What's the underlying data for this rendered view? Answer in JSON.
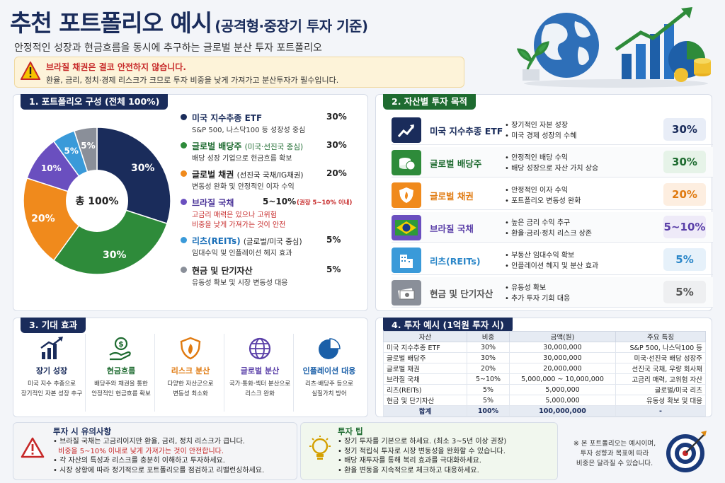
{
  "header": {
    "title": "추천 포트폴리오 예시",
    "title_sub": "(공격형·중장기 투자 기준)",
    "subtitle": "안정적인 성장과 현금흐름을 동시에 추구하는 글로벌 분산 투자 포트폴리오"
  },
  "warning": {
    "line1": "브라질 채권은 결코 안전하지 않습니다.",
    "line2": "환율, 금리, 정치·경제 리스크가 크므로 투자 비중을 낮게 가져가고 분산투자가 필수입니다."
  },
  "section1": {
    "title": "1. 포트폴리오 구성 (전체 100%)",
    "center_label": "총 100%",
    "items": [
      {
        "name": "미국 지수추종 ETF",
        "note": "",
        "pct": "30%",
        "desc": "S&P 500, 나스닥100 등 성장성 중심",
        "desc2": "",
        "color": "#1a2c5b"
      },
      {
        "name": "글로벌 배당주",
        "note": "(미국·선진국 중심)",
        "pct": "30%",
        "desc": "배당 성장 기업으로 현금흐름 확보",
        "desc2": "",
        "color": "#2e8b3a"
      },
      {
        "name": "글로벌 채권",
        "note": "(선진국 국채/IG채권)",
        "pct": "20%",
        "desc": "변동성 완화 및 안정적인 이자 수익",
        "desc2": "",
        "color": "#f08a1c"
      },
      {
        "name": "브라질 국채",
        "note": "",
        "pct": "5~10%",
        "pct_note": "(권장 5~10% 이내)",
        "desc": "고금리 매력은 있으나 고위험",
        "desc2": "비중을 낮게 가져가는 것이 안전",
        "color": "#6a4fbf"
      },
      {
        "name": "리츠(REITs)",
        "note": "(글로벌/미국 중심)",
        "pct": "5%",
        "desc": "임대수익 및 인플레이션 헤지 효과",
        "desc2": "",
        "color": "#3a9ad9"
      },
      {
        "name": "현금 및 단기자산",
        "note": "",
        "pct": "5%",
        "desc": "유동성 확보 및 시장 변동성 대응",
        "desc2": "",
        "color": "#8a8f99"
      }
    ]
  },
  "chart_data": {
    "type": "pie",
    "title": "",
    "categories": [
      "미국 지수추종 ETF",
      "글로벌 배당주",
      "글로벌 채권",
      "브라질 국채",
      "리츠(REITs)",
      "현금 및 단기자산"
    ],
    "values": [
      30,
      30,
      20,
      10,
      5,
      5
    ],
    "slice_labels": [
      "30%",
      "30%",
      "20%",
      "10%",
      "5%",
      "5%"
    ],
    "colors": [
      "#1a2c5b",
      "#2e8b3a",
      "#f08a1c",
      "#6a4fbf",
      "#3a9ad9",
      "#8a8f99"
    ]
  },
  "section2": {
    "title": "2. 자산별 투자 목적",
    "rows": [
      {
        "name": "미국 지수추종 ETF",
        "b1": "장기적인 자본 성장",
        "b2": "미국 경제 성장의 수혜",
        "pct": "30%",
        "color": "#1a2c5b",
        "bg": "#e8edf7",
        "icon": "chart-up-icon"
      },
      {
        "name": "글로벌 배당주",
        "b1": "안정적인 배당 수익",
        "b2": "배당 성장으로 자산 가치 상승",
        "pct": "30%",
        "color": "#1e6b30",
        "bg": "#e6f3e8",
        "icon": "coins-icon"
      },
      {
        "name": "글로벌 채권",
        "b1": "안정적인 이자 수익",
        "b2": "포트폴리오 변동성 완화",
        "pct": "20%",
        "color": "#e07a10",
        "bg": "#fdeee0",
        "icon": "shield-icon"
      },
      {
        "name": "브라질 국채",
        "b1": "높은 금리 수익 추구",
        "b2": "환율·금리·정치 리스크 상존",
        "pct": "5~10%",
        "color": "#5a3fa8",
        "bg": "#eeeaf8",
        "icon": "brazil-flag-icon"
      },
      {
        "name": "리츠(REITs)",
        "b1": "부동산 임대수익 확보",
        "b2": "인플레이션 헤지 및 분산 효과",
        "pct": "5%",
        "color": "#2a86c8",
        "bg": "#e6f1fa",
        "icon": "building-icon"
      },
      {
        "name": "현금 및 단기자산",
        "b1": "유동성 확보",
        "b2": "추가 투자 기회 대응",
        "pct": "5%",
        "color": "#555",
        "bg": "#eeeff1",
        "icon": "cash-icon"
      }
    ]
  },
  "section3": {
    "title": "3. 기대 효과",
    "items": [
      {
        "title": "장기 성장",
        "d1": "미국 지수 추종으로",
        "d2": "장기적인 자본 성장 추구",
        "color": "#1a2c5b",
        "icon": "bar-growth-icon"
      },
      {
        "title": "현금흐름",
        "d1": "배당주와 채권을 통한",
        "d2": "안정적인 현금흐름 확보",
        "color": "#1e6b30",
        "icon": "money-hand-icon"
      },
      {
        "title": "리스크 분산",
        "d1": "다양한 자산군으로",
        "d2": "변동성 최소화",
        "color": "#e07a10",
        "icon": "shield-fire-icon"
      },
      {
        "title": "글로벌 분산",
        "d1": "국가·통화·섹터 분산으로",
        "d2": "리스크 완화",
        "color": "#5a3fa8",
        "icon": "globe-icon"
      },
      {
        "title": "인플레이션 대응",
        "d1": "리츠·배당주 등으로",
        "d2": "실질가치 방어",
        "color": "#1a5fa8",
        "icon": "pie-icon"
      }
    ]
  },
  "section4": {
    "title": "4. 투자 예시 (1억원 투자 시)",
    "headers": [
      "자산",
      "비중",
      "금액(원)",
      "주요 특징"
    ],
    "rows": [
      [
        "미국 지수추종 ETF",
        "30%",
        "30,000,000",
        "S&P 500, 나스닥100 등"
      ],
      [
        "글로벌 배당주",
        "30%",
        "30,000,000",
        "미국·선진국 배당 성장주"
      ],
      [
        "글로벌 채권",
        "20%",
        "20,000,000",
        "선진국 국채, 우량 회사채"
      ],
      [
        "브라질 국채",
        "5~10%",
        "5,000,000 ~ 10,000,000",
        "고금리 매력, 고위험 자산"
      ],
      [
        "리츠(REITs)",
        "5%",
        "5,000,000",
        "글로벌/미국 리츠"
      ],
      [
        "현금 및 단기자산",
        "5%",
        "5,000,000",
        "유동성 확보 및 대응"
      ]
    ],
    "total": [
      "합계",
      "100%",
      "100,000,000",
      "-"
    ]
  },
  "caution": {
    "title": "투자 시 유의사항",
    "l1": "브라질 국채는 고금리이지만 환율, 금리, 정치 리스크가 큽니다.",
    "l2": "비중을 5~10% 이내로 낮게 가져가는 것이 안전합니다.",
    "l3": "각 자산의 특성과 리스크를 충분히 이해하고 투자하세요.",
    "l4": "시장 상황에 따라 정기적으로 포트폴리오를 점검하고 리밸런싱하세요."
  },
  "tips": {
    "title": "투자 팁",
    "items": [
      "장기 투자를 기본으로 하세요. (최소 3~5년 이상 권장)",
      "정기 적립식 투자로 시장 변동성을 완화할 수 있습니다.",
      "배당 재투자를 통해 복리 효과를 극대화하세요.",
      "환율 변동을 지속적으로 체크하고 대응하세요."
    ]
  },
  "note": {
    "l1": "※ 본 포트폴리오는 예시이며,",
    "l2": "투자 성향과 목표에 따라",
    "l3": "비중은 달라질 수 있습니다."
  }
}
